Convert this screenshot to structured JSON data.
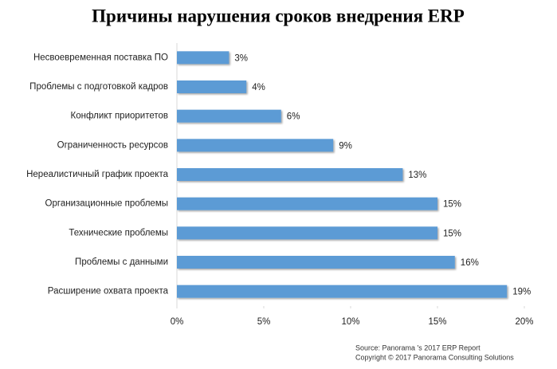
{
  "chart_data": {
    "type": "bar",
    "orientation": "horizontal",
    "title": "Причины нарушения сроков внедрения ERP",
    "categories": [
      "Несвоевременная поставка ПО",
      "Проблемы с подготовкой кадров",
      "Конфликт приоритетов",
      "Ограниченность ресурсов",
      "Нереалистичный график проекта",
      "Организационные проблемы",
      "Технические проблемы",
      "Проблемы с данными",
      "Расширение охвата проекта"
    ],
    "values": [
      3,
      4,
      6,
      9,
      13,
      15,
      15,
      16,
      19
    ],
    "value_labels": [
      "3%",
      "4%",
      "6%",
      "9%",
      "13%",
      "15%",
      "15%",
      "16%",
      "19%"
    ],
    "color": "#5b9bd5",
    "xlim": [
      0,
      20
    ],
    "xticks": [
      {
        "value": 0,
        "label": "0%"
      },
      {
        "value": 5,
        "label": "5%"
      },
      {
        "value": 10,
        "label": "10%"
      },
      {
        "value": 15,
        "label": "15%"
      },
      {
        "value": 20,
        "label": "20%"
      }
    ],
    "grid": false,
    "source": [
      "Source: Panorama 's 2017 ERP Report",
      "Copyright © 2017 Panorama Consulting Solutions"
    ]
  }
}
